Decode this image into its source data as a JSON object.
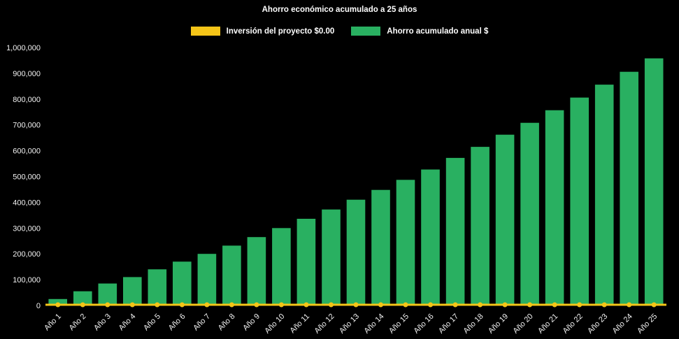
{
  "chart_data": {
    "type": "bar",
    "title": "Ahorro económico acumulado a 25 años",
    "legend_position": "top",
    "grid": false,
    "background": "#000000",
    "text_color": "#ffffff",
    "ylim": [
      0,
      1000000
    ],
    "ytick_labels": [
      "0",
      "100,000",
      "200,000",
      "300,000",
      "400,000",
      "500,000",
      "600,000",
      "700,000",
      "800,000",
      "900,000",
      "1,000,000"
    ],
    "categories": [
      "Año 1",
      "Año 2",
      "Año 3",
      "Año 4",
      "Año 5",
      "Año 6",
      "Año 7",
      "Año 8",
      "Año 9",
      "Año 10",
      "Año 11",
      "Año 12",
      "Año 13",
      "Año 14",
      "Año 15",
      "Año 16",
      "Año 17",
      "Año 18",
      "Año 19",
      "Año 20",
      "Año 21",
      "Año 22",
      "Año 23",
      "Año 24",
      "Año 25"
    ],
    "series": [
      {
        "name": "Inversión del proyecto $0.00",
        "type": "line",
        "color": "#f5c518",
        "values": [
          0,
          0,
          0,
          0,
          0,
          0,
          0,
          0,
          0,
          0,
          0,
          0,
          0,
          0,
          0,
          0,
          0,
          0,
          0,
          0,
          0,
          0,
          0,
          0,
          0
        ]
      },
      {
        "name": "Ahorro acumulado anual $",
        "type": "bar",
        "color": "#29b061",
        "values": [
          25000,
          55000,
          85000,
          110000,
          140000,
          170000,
          200000,
          232000,
          265000,
          300000,
          336000,
          372000,
          410000,
          448000,
          487000,
          527000,
          572000,
          615000,
          662000,
          708000,
          757000,
          806000,
          856000,
          906000,
          958000
        ]
      }
    ]
  }
}
